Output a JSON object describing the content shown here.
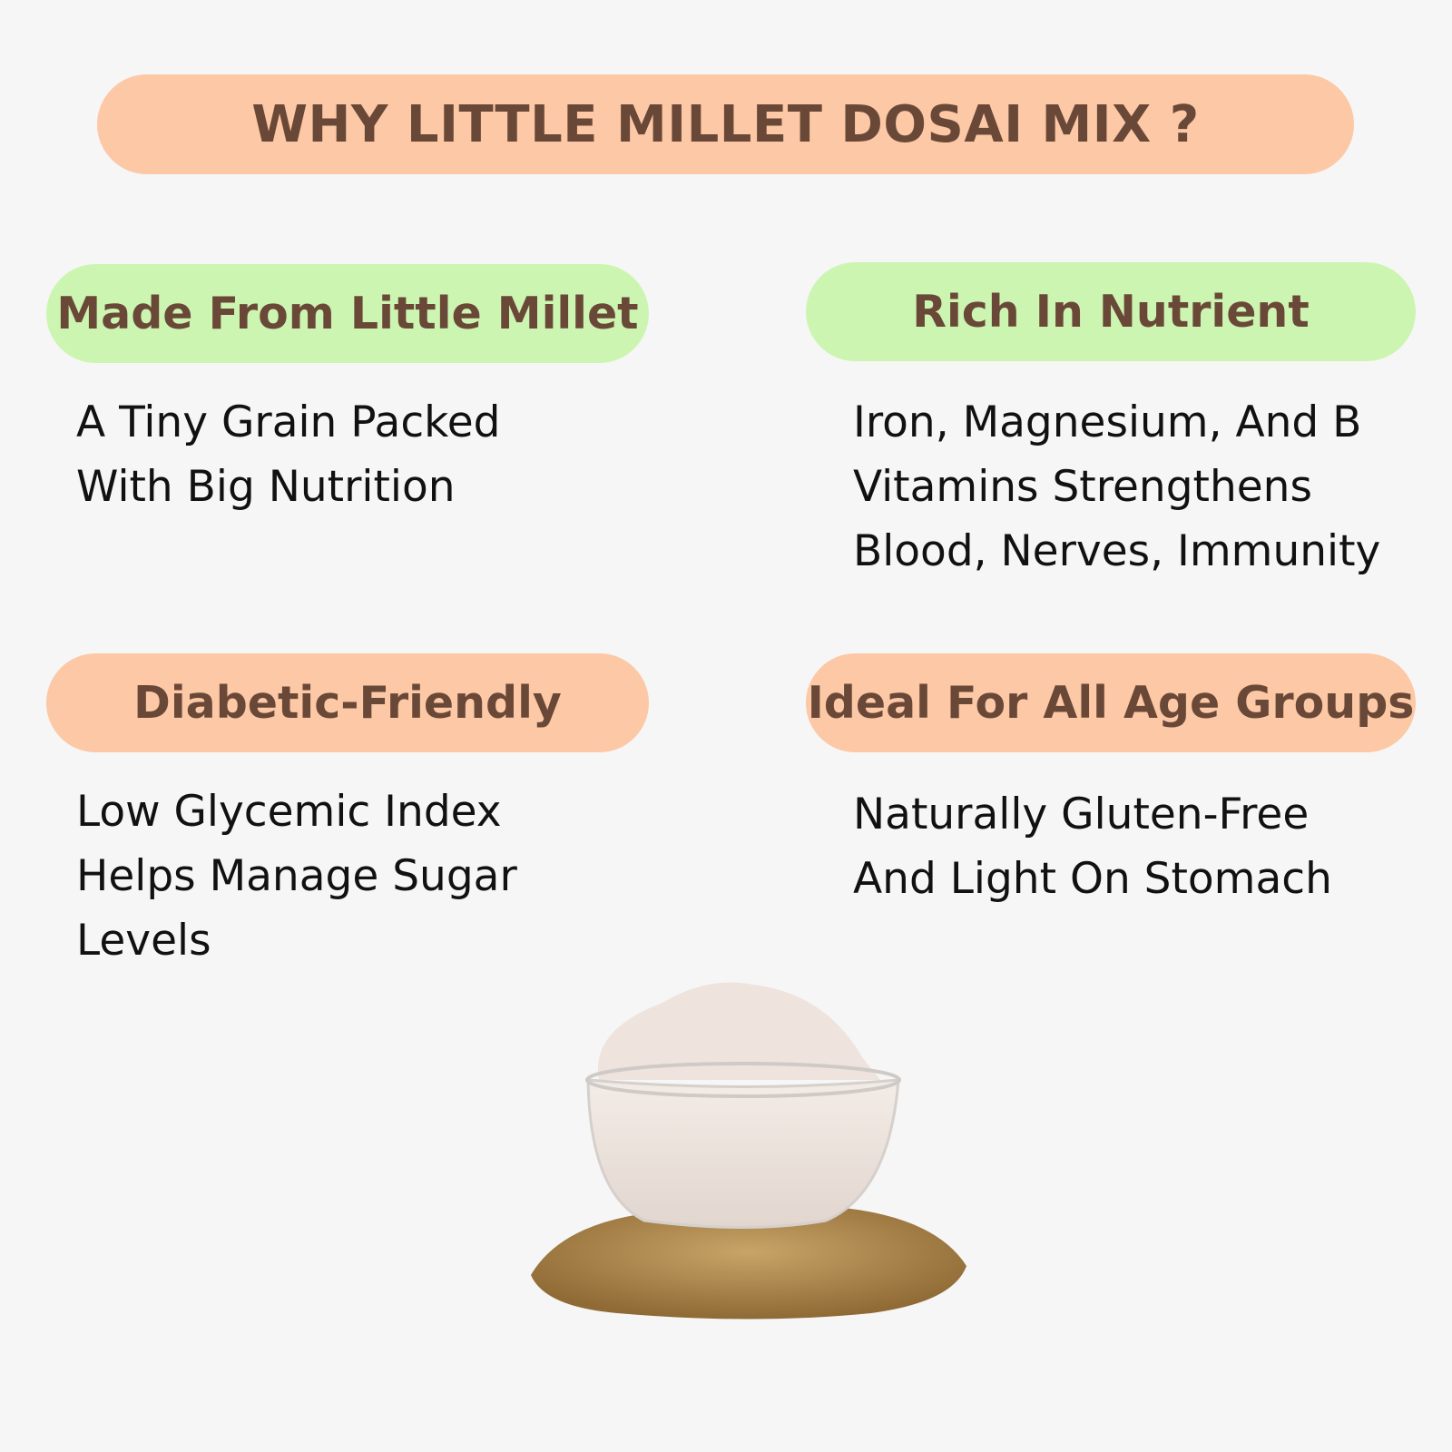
{
  "title": "WHY  LITTLE MILLET DOSAI MIX ?",
  "features": [
    {
      "heading": "Made From Little Millet",
      "color": "#cdf5b2",
      "lines": [
        "A Tiny Grain Packed",
        "With Big Nutrition"
      ]
    },
    {
      "heading": "Rich In Nutrient",
      "color": "#cdf5b2",
      "lines": [
        "Iron, Magnesium, And B",
        "Vitamins Strengthens",
        "Blood, Nerves, Immunity"
      ]
    },
    {
      "heading": "Diabetic-Friendly",
      "color": "#fcc8a5",
      "lines": [
        "Low Glycemic Index",
        "Helps Manage Sugar",
        "Levels"
      ]
    },
    {
      "heading": "Ideal For All Age Groups",
      "color": "#fcc8a5",
      "lines": [
        "Naturally Gluten-Free",
        "And Light On Stomach"
      ]
    }
  ],
  "image": "bowl-of-millet-flour-with-grains"
}
